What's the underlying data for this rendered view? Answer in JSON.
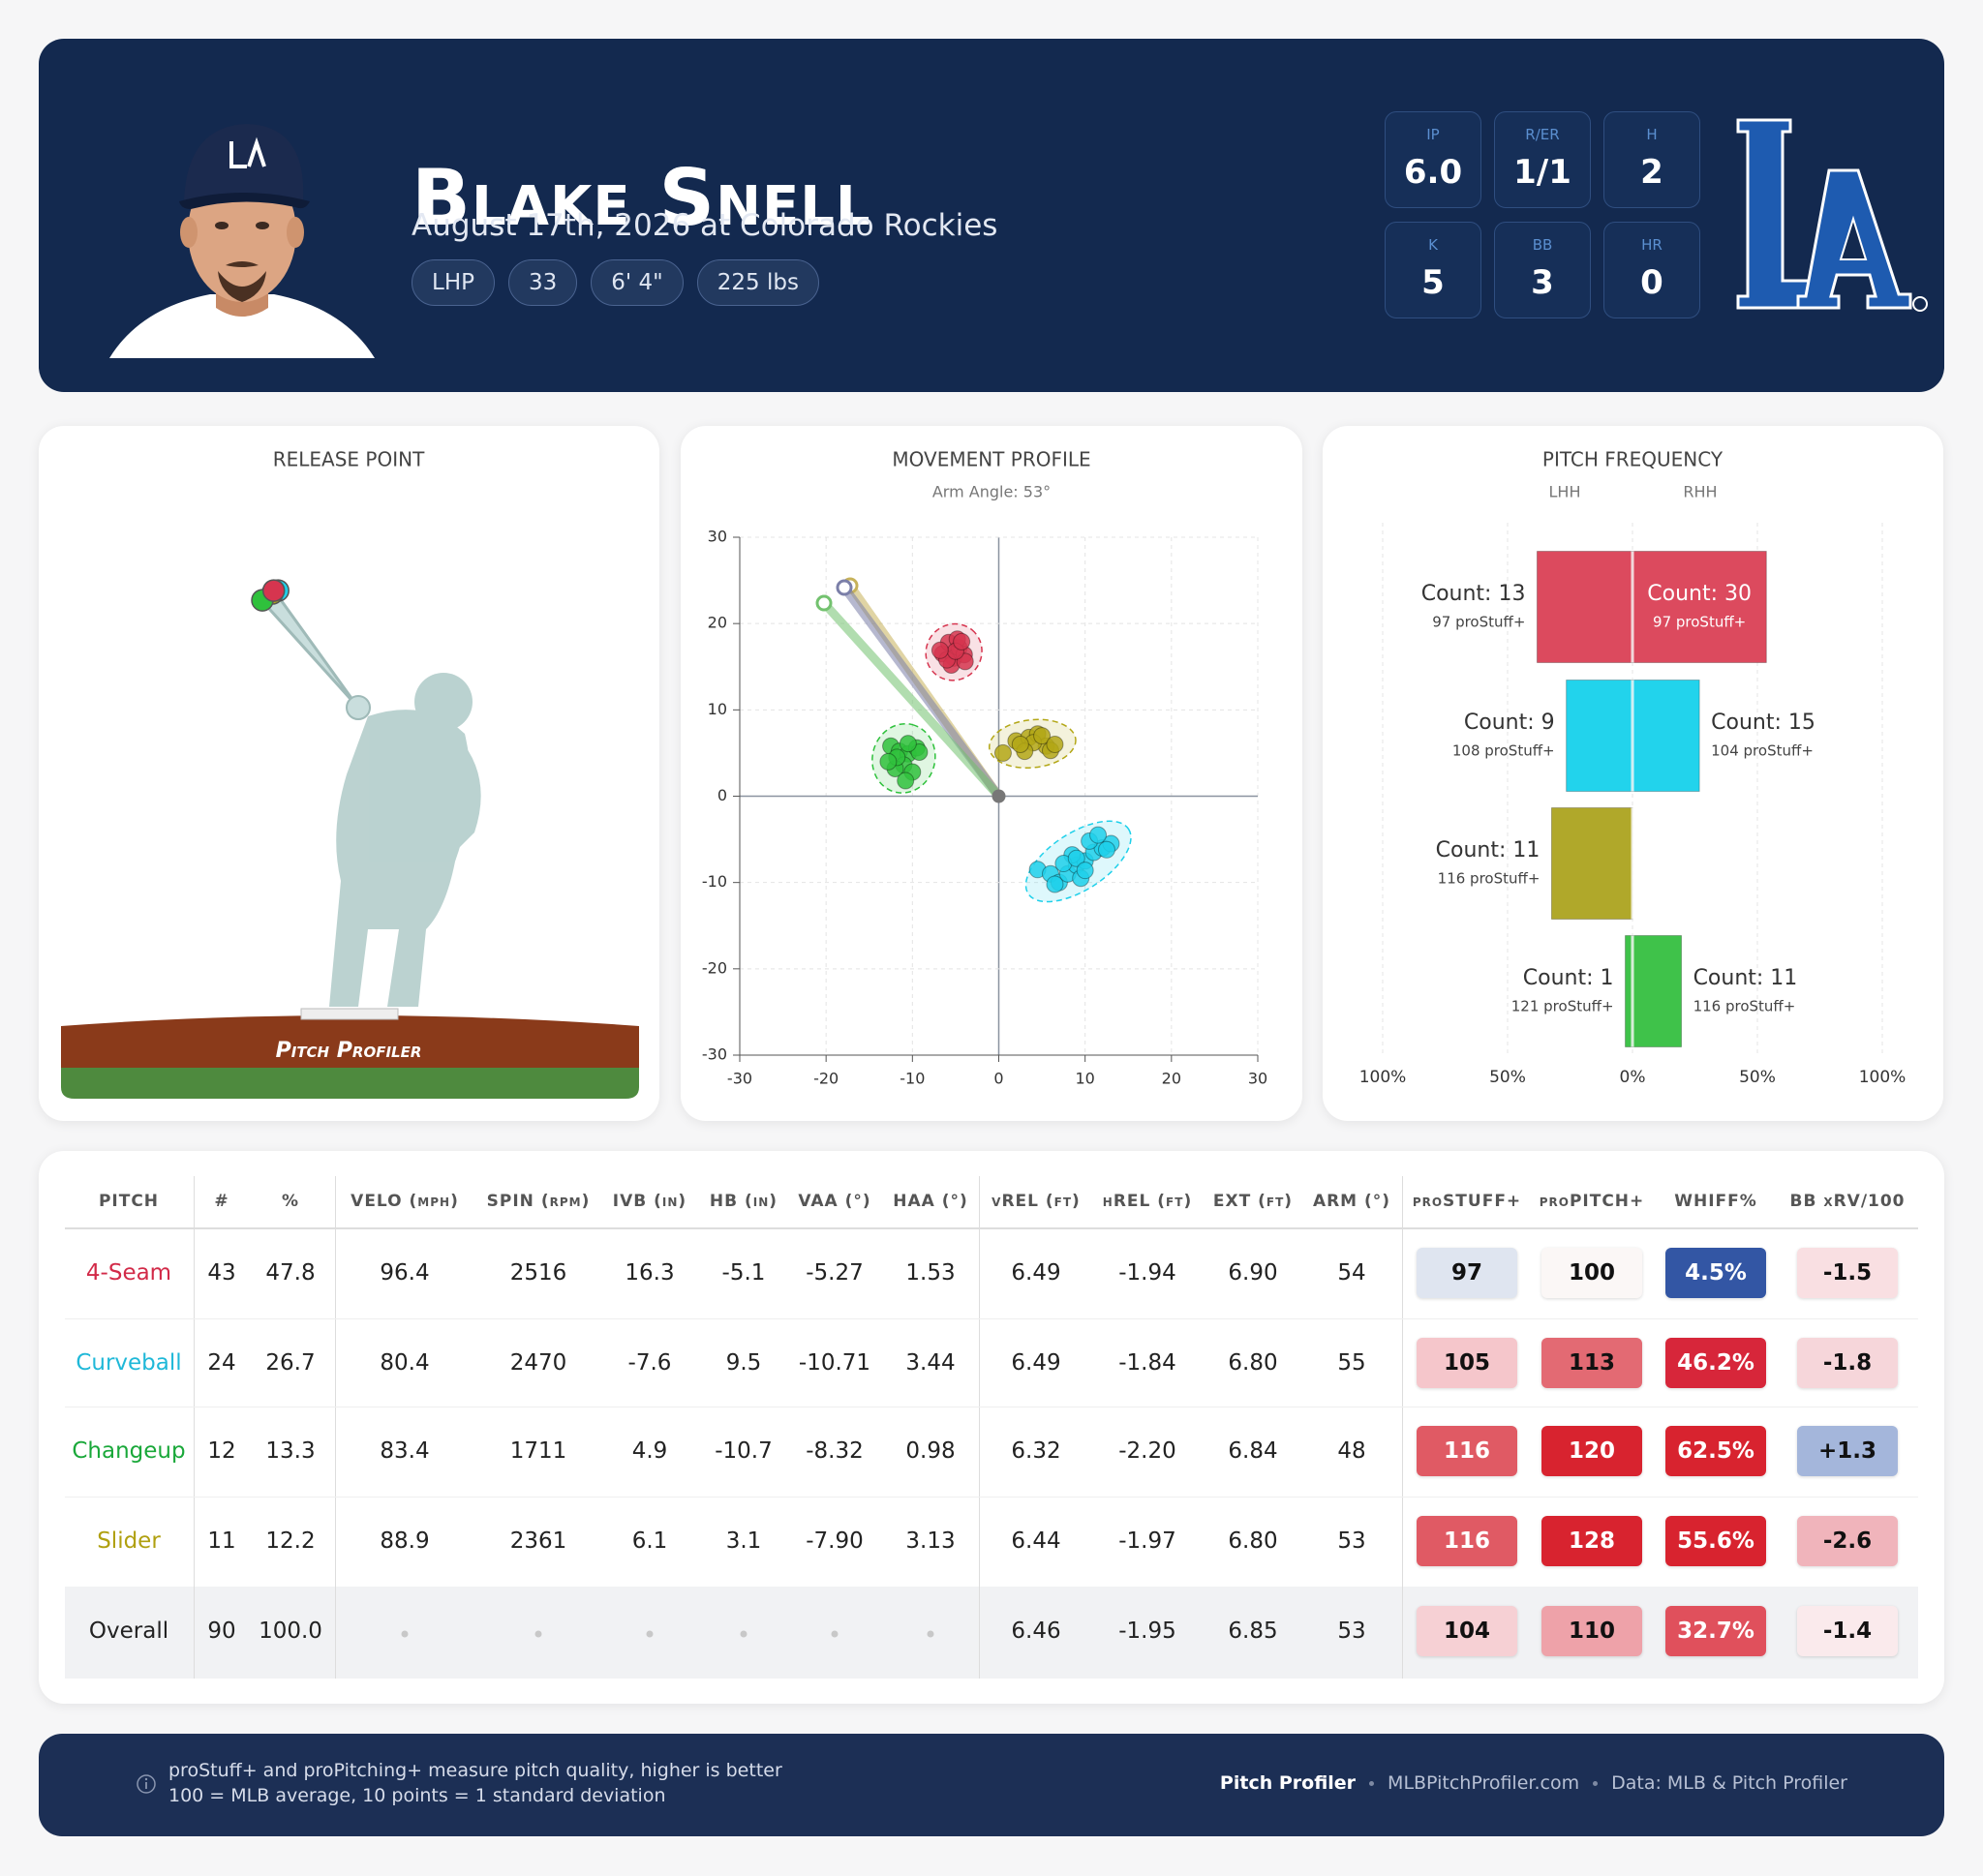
{
  "header": {
    "name": "Blake Snell",
    "subtitle": "August 17th, 2026 at Colorado Rockies",
    "tags": [
      "LHP",
      "33",
      "6' 4\"",
      "225 lbs"
    ],
    "stats": [
      {
        "label": "IP",
        "value": "6.0"
      },
      {
        "label": "R/ER",
        "value": "1/1"
      },
      {
        "label": "H",
        "value": "2"
      },
      {
        "label": "K",
        "value": "5"
      },
      {
        "label": "BB",
        "value": "3"
      },
      {
        "label": "HR",
        "value": "0"
      }
    ]
  },
  "chart_data": [
    {
      "type": "release",
      "title": "RELEASE POINT",
      "brand": "Pitch Profiler",
      "series": [
        {
          "color": "#1fd0ea",
          "x": [
            -1.84
          ],
          "values": [
            6.49
          ]
        },
        {
          "color": "#b3a716",
          "x": [
            -1.97
          ],
          "values": [
            6.44
          ]
        },
        {
          "color": "#2fc13c",
          "x": [
            -2.2
          ],
          "values": [
            6.32
          ]
        },
        {
          "color": "#d6354f",
          "x": [
            -1.94
          ],
          "values": [
            6.49
          ]
        }
      ]
    },
    {
      "type": "scatter",
      "title": "MOVEMENT PROFILE",
      "subtitle": "Arm Angle: 53°",
      "xlim": [
        -30,
        30
      ],
      "ylim": [
        -30,
        30
      ],
      "xticks": [
        -30,
        -20,
        -10,
        0,
        10,
        20,
        30
      ],
      "yticks": [
        -30,
        -20,
        -10,
        0,
        10,
        20,
        30
      ],
      "grid": true,
      "series": [
        {
          "color": "#d6354f",
          "x": [
            -6.5,
            -5.8,
            -5.2,
            -4.6,
            -4.0,
            -5.5,
            -6.0,
            -4.8,
            -3.9,
            -5.0,
            -6.8,
            -4.3
          ],
          "values": [
            16.5,
            17.8,
            16.0,
            17.2,
            16.4,
            15.2,
            15.8,
            18.2,
            15.6,
            16.8,
            16.9,
            17.9
          ]
        },
        {
          "color": "#2fc13c",
          "x": [
            -12.5,
            -11.5,
            -10.5,
            -9.5,
            -11.0,
            -10.0,
            -12.0,
            -10.8,
            -9.2,
            -11.8,
            -10.5,
            -12.8
          ],
          "values": [
            5.8,
            5.2,
            4.9,
            5.6,
            3.6,
            2.8,
            3.2,
            1.8,
            5.1,
            4.5,
            6.1,
            4.0
          ]
        },
        {
          "color": "#b3a716",
          "x": [
            0.5,
            2.0,
            3.5,
            4.5,
            5.5,
            6.0,
            4.0,
            3.0,
            2.5,
            5.0,
            6.5
          ],
          "values": [
            5.0,
            6.4,
            6.8,
            7.2,
            5.8,
            5.3,
            6.2,
            5.2,
            6.0,
            7.0,
            6.0
          ]
        },
        {
          "color": "#1fd0ea",
          "x": [
            4.5,
            6,
            7,
            8,
            9,
            10,
            11,
            12,
            13,
            9.5,
            8.5,
            7.5,
            10.5,
            11.5,
            12.5,
            9,
            6.5,
            10
          ],
          "values": [
            -8.5,
            -9,
            -10,
            -9,
            -8,
            -7.5,
            -6.5,
            -6,
            -5.5,
            -9.5,
            -6.8,
            -7.8,
            -5.2,
            -4.5,
            -6.2,
            -7.2,
            -10.2,
            -8.6
          ]
        }
      ]
    },
    {
      "type": "diverging-bar",
      "title": "PITCH FREQUENCY",
      "colors": [
        "#dc4a5e",
        "#22d3ec",
        "#b0a82a",
        "#3fc24a"
      ],
      "xlim": [
        -100,
        100
      ],
      "xticks": [
        {
          "value": -100,
          "label": "100%"
        },
        {
          "value": -50,
          "label": "50%"
        },
        {
          "value": 0,
          "label": "0%"
        },
        {
          "value": 50,
          "label": "50%"
        },
        {
          "value": 100,
          "label": "100%"
        }
      ],
      "series": [
        {
          "name": "LHH",
          "values": [
            38.2,
            26.5,
            32.4,
            2.9
          ],
          "count_labels": [
            "Count: 13",
            "Count: 9",
            "Count: 11",
            "Count: 1"
          ],
          "stuff_labels": [
            "97 proStuff+",
            "108 proStuff+",
            "116 proStuff+",
            "121 proStuff+"
          ]
        },
        {
          "name": "RHH",
          "values": [
            53.6,
            26.8,
            0,
            19.6
          ],
          "count_labels": [
            "Count: 30",
            "Count: 15",
            null,
            "Count: 11"
          ],
          "stuff_labels": [
            "97 proStuff+",
            "104 proStuff+",
            null,
            "116 proStuff+"
          ]
        }
      ]
    }
  ],
  "table": {
    "columns": [
      "PITCH",
      "#",
      "%",
      "VELO (mph)",
      "SPIN (rpm)",
      "IVB (in)",
      "HB (in)",
      "VAA (°)",
      "HAA (°)",
      "vREL (ft)",
      "hREL (ft)",
      "EXT (ft)",
      "ARM (°)",
      "proSTUFF+",
      "proPITCH+",
      "WHIFF%",
      "BB xRV/100"
    ],
    "row_colors": [
      "#d22a48",
      "#1fb8d8",
      "#1aa83a",
      "#b0a010",
      "#222222"
    ],
    "rows": [
      [
        "4-Seam",
        "43",
        "47.8",
        "96.4",
        "2516",
        "16.3",
        "-5.1",
        "-5.27",
        "1.53",
        "6.49",
        "-1.94",
        "6.90",
        "54",
        "97",
        "100",
        "4.5%",
        "-1.5"
      ],
      [
        "Curveball",
        "24",
        "26.7",
        "80.4",
        "2470",
        "-7.6",
        "9.5",
        "-10.71",
        "3.44",
        "6.49",
        "-1.84",
        "6.80",
        "55",
        "105",
        "113",
        "46.2%",
        "-1.8"
      ],
      [
        "Changeup",
        "12",
        "13.3",
        "83.4",
        "1711",
        "4.9",
        "-10.7",
        "-8.32",
        "0.98",
        "6.32",
        "-2.20",
        "6.84",
        "48",
        "116",
        "120",
        "62.5%",
        "+1.3"
      ],
      [
        "Slider",
        "11",
        "12.2",
        "88.9",
        "2361",
        "6.1",
        "3.1",
        "-7.90",
        "3.13",
        "6.44",
        "-1.97",
        "6.80",
        "53",
        "116",
        "128",
        "55.6%",
        "-2.6"
      ],
      [
        "Overall",
        "90",
        "100.0",
        null,
        null,
        null,
        null,
        null,
        null,
        "6.46",
        "-1.95",
        "6.85",
        "53",
        "104",
        "110",
        "32.7%",
        "-1.4"
      ]
    ],
    "badge_styles": [
      [
        [
          "#dfe5f0",
          "#111"
        ],
        [
          "#fbf7f6",
          "#111"
        ],
        [
          "#3356a4",
          "#fff"
        ],
        [
          "#f9dfe2",
          "#111"
        ]
      ],
      [
        [
          "#f5c6cb",
          "#111"
        ],
        [
          "#e36a73",
          "#111"
        ],
        [
          "#d7263a",
          "#fff"
        ],
        [
          "#f6d6da",
          "#111"
        ]
      ],
      [
        [
          "#e05a64",
          "#fff"
        ],
        [
          "#d8232f",
          "#fff"
        ],
        [
          "#d8232f",
          "#fff"
        ],
        [
          "#a4b6db",
          "#111"
        ]
      ],
      [
        [
          "#e05a64",
          "#fff"
        ],
        [
          "#d8232f",
          "#fff"
        ],
        [
          "#d8232f",
          "#fff"
        ],
        [
          "#f0b4bb",
          "#111"
        ]
      ],
      [
        [
          "#f6d0d4",
          "#111"
        ],
        [
          "#eea2a9",
          "#111"
        ],
        [
          "#e0505c",
          "#fff"
        ],
        [
          "#faeaec",
          "#111"
        ]
      ]
    ]
  },
  "footer": {
    "notes": [
      "proStuff+ and proPitching+ measure pitch quality, higher is better",
      "100 = MLB average, 10 points = 1 standard deviation"
    ],
    "brand": "Pitch Profiler",
    "links": [
      "MLBPitchProfiler.com",
      "Data: MLB & Pitch Profiler"
    ]
  }
}
